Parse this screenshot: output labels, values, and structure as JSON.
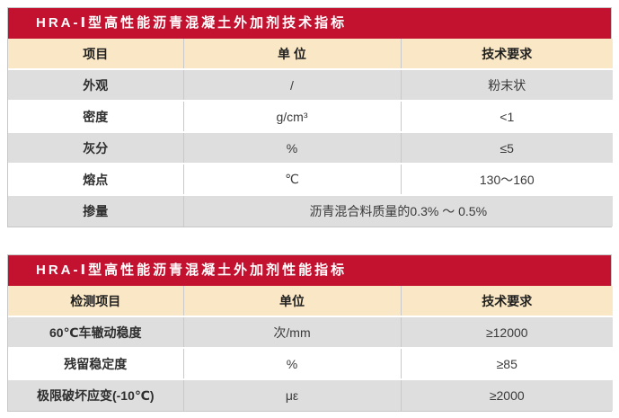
{
  "colors": {
    "title_bar_bg": "#c3122f",
    "title_text": "#ffffff",
    "header_row_bg": "#fae7c5",
    "row_gray_bg": "#dedede",
    "row_white_bg": "#ffffff",
    "border": "#c9c9c9",
    "cell_text": "#3a3a3a"
  },
  "table1": {
    "title": "HRA-Ⅰ型高性能沥青混凝土外加剂技术指标",
    "headers": [
      "项目",
      "单 位",
      "技术要求"
    ],
    "rows": [
      {
        "item": "外观",
        "unit": "/",
        "req": "粉末状"
      },
      {
        "item": "密度",
        "unit": "g/cm³",
        "req": "<1"
      },
      {
        "item": "灰分",
        "unit": "%",
        "req": "≤5"
      },
      {
        "item": "熔点",
        "unit": "℃",
        "req": "130～160"
      },
      {
        "item": "掺量",
        "merged": "沥青混合料质量的0.3% ～ 0.5%"
      }
    ]
  },
  "table2": {
    "title": "HRA-Ⅰ型高性能沥青混凝土外加剂性能指标",
    "headers": [
      "检测项目",
      "单位",
      "技术要求"
    ],
    "rows": [
      {
        "item": "60℃车辙动稳度",
        "unit": "次/mm",
        "req": "≥12000"
      },
      {
        "item": "残留稳定度",
        "unit": "%",
        "req": "≥85"
      },
      {
        "item": "极限破坏应变(-10℃)",
        "unit": "με",
        "req": "≥2000"
      }
    ]
  }
}
